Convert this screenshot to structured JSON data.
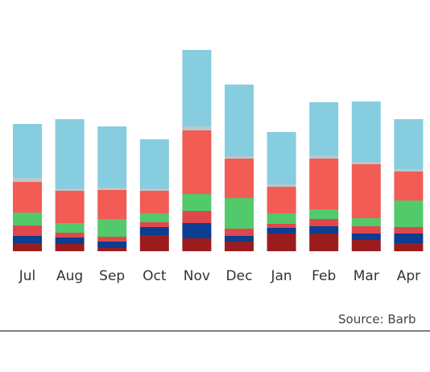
{
  "chart_data": {
    "type": "stacked_bar",
    "categories": [
      "Jul",
      "Aug",
      "Sep",
      "Oct",
      "Nov",
      "Dec",
      "Jan",
      "Feb",
      "Mar",
      "Apr"
    ],
    "series": [
      {
        "color": "#9b1c1f",
        "values": [
          10,
          9,
          4,
          20,
          16,
          12,
          22,
          22,
          14,
          10
        ]
      },
      {
        "color": "#0b3d91",
        "values": [
          9,
          8,
          8,
          10,
          19,
          7,
          7,
          9,
          8,
          12
        ]
      },
      {
        "color": "#e0474c",
        "values": [
          13,
          6,
          6,
          6,
          15,
          9,
          5,
          9,
          9,
          8
        ]
      },
      {
        "color": "#52c96b",
        "values": [
          16,
          12,
          22,
          11,
          21,
          38,
          13,
          12,
          10,
          33
        ]
      },
      {
        "color": "#f25c54",
        "values": [
          38,
          40,
          36,
          28,
          79,
          49,
          33,
          63,
          67,
          36
        ]
      },
      {
        "color": "#b9c7cb",
        "values": [
          5,
          3,
          3,
          3,
          5,
          3,
          3,
          4,
          3,
          3
        ]
      },
      {
        "color": "#86cde0",
        "values": [
          67,
          86,
          76,
          61,
          95,
          89,
          65,
          66,
          75,
          62
        ]
      }
    ],
    "source": "Source: Barb"
  }
}
